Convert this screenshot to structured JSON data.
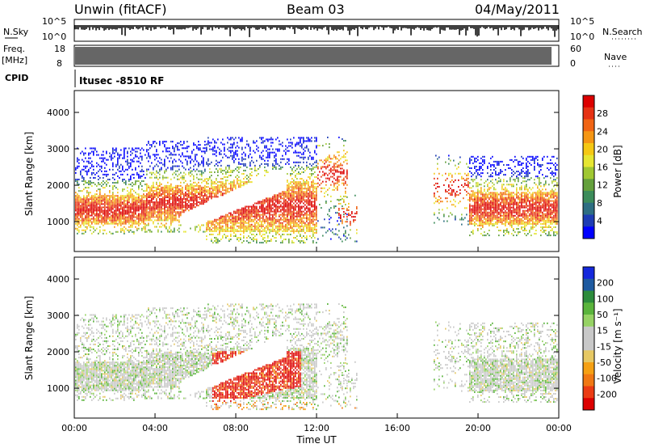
{
  "header": {
    "station": "Unwin (fitACF)",
    "beam": "Beam 03",
    "date": "04/May/2011"
  },
  "top_panels": {
    "nsky_label": "N.Sky",
    "nsky_ticks": [
      "10^5",
      "10^0"
    ],
    "nsearch_label": "N.Search",
    "nsearch_ticks": [
      "10^5",
      "10^0"
    ],
    "freq_label": "Freq.",
    "freq_unit": "[MHz]",
    "freq_ticks": [
      "18",
      "8"
    ],
    "nave_label": "Nave",
    "nave_ticks": [
      "60",
      "0"
    ],
    "cpid_label": "CPID",
    "cpid_text": "Itusec -8510 RF"
  },
  "colors": {
    "power_scale": [
      "#0000ff",
      "#1e3cb4",
      "#2e6e82",
      "#3c8c5a",
      "#64a03c",
      "#a0c832",
      "#e6e632",
      "#f5c814",
      "#f59614",
      "#f06414",
      "#e63214",
      "#dc0000"
    ],
    "velocity_scale": [
      "#1428dc",
      "#1e5aa0",
      "#2d8c3c",
      "#5ab43c",
      "#96d264",
      "#c8c8c8",
      "#c8c8c8",
      "#e6c864",
      "#f5a014",
      "#f07814",
      "#eb3c14",
      "#dc0000"
    ]
  },
  "chart_data": [
    {
      "type": "heatmap",
      "name": "Power",
      "xlabel": "Time UT",
      "ylabel": "Slant Range [km]",
      "x_ticks": [
        "00:00",
        "04:00",
        "08:00",
        "12:00",
        "16:00",
        "20:00",
        "00:00"
      ],
      "xlim_hours": [
        0,
        24
      ],
      "ylim_km": [
        180,
        4600
      ],
      "y_ticks": [
        1000,
        2000,
        3000,
        4000
      ],
      "colorbar": {
        "label": "Power [dB]",
        "ticks": [
          4,
          8,
          12,
          16,
          20,
          24,
          28
        ],
        "range": [
          0,
          30
        ]
      }
    },
    {
      "type": "heatmap",
      "name": "Velocity",
      "xlabel": "Time UT",
      "ylabel": "Slant Range [km]",
      "x_ticks": [
        "00:00",
        "04:00",
        "08:00",
        "12:00",
        "16:00",
        "20:00",
        "00:00"
      ],
      "xlim_hours": [
        0,
        24
      ],
      "ylim_km": [
        180,
        4600
      ],
      "y_ticks": [
        1000,
        2000,
        3000,
        4000
      ],
      "colorbar": {
        "label": "Velocity [m s⁻¹]",
        "ticks": [
          "200",
          "100",
          "50",
          "15",
          "-15",
          "-50",
          "-100",
          "-200"
        ]
      }
    }
  ]
}
